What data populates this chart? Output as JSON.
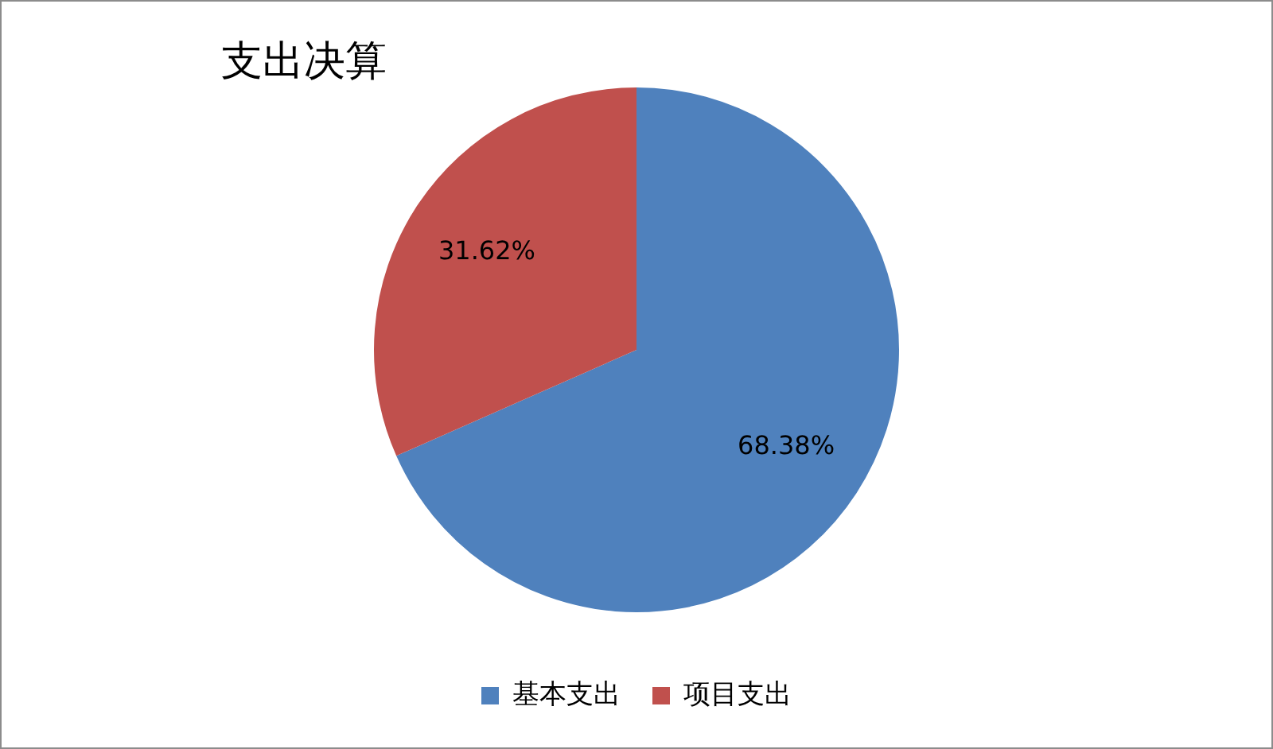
{
  "chart_data": {
    "type": "pie",
    "title": "支出决算",
    "categories": [
      "基本支出",
      "项目支出"
    ],
    "values": [
      68.38,
      31.62
    ],
    "colors": [
      "#4f81bd",
      "#c0504d"
    ],
    "value_labels": [
      "68.38%",
      "31.62%"
    ],
    "legend": "bottom"
  }
}
